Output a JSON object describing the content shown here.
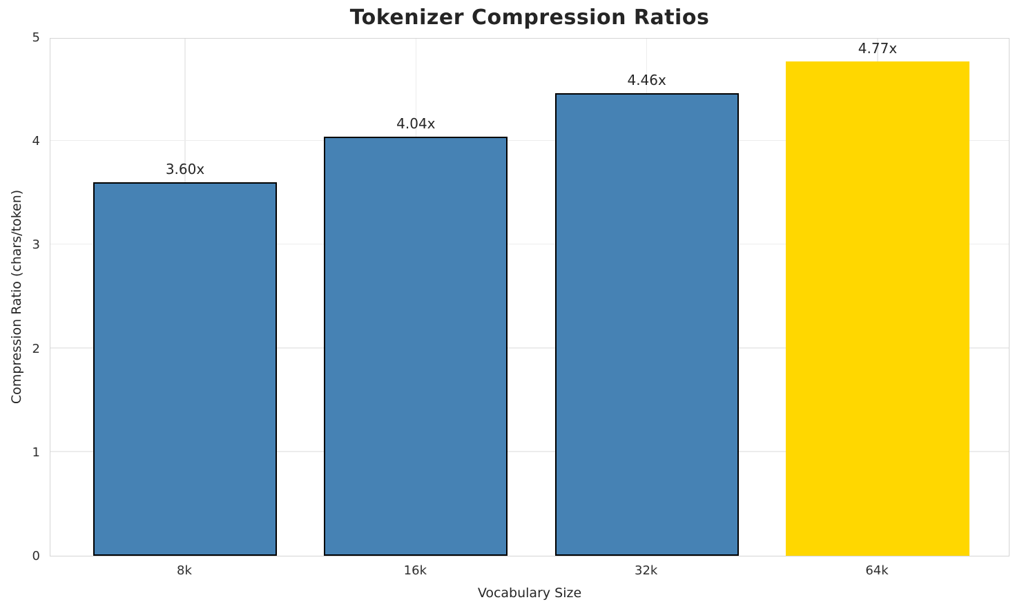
{
  "chart_data": {
    "type": "bar",
    "title": "Tokenizer Compression Ratios",
    "xlabel": "Vocabulary Size",
    "ylabel": "Compression Ratio (chars/token)",
    "categories": [
      "8k",
      "16k",
      "32k",
      "64k"
    ],
    "values": [
      3.6,
      4.04,
      4.46,
      4.77
    ],
    "bar_labels": [
      "3.60x",
      "4.04x",
      "4.46x",
      "4.77x"
    ],
    "bar_colors": [
      "#4682B4",
      "#4682B4",
      "#4682B4",
      "#FFD700"
    ],
    "bar_edge_colors": [
      "#000000",
      "#000000",
      "#000000",
      "#FFD700"
    ],
    "yticks": [
      0,
      1,
      2,
      3,
      4,
      5
    ],
    "ylim": [
      0,
      5
    ],
    "grid": "both",
    "legend": "none"
  },
  "colors": {
    "bar_default": "#4682B4",
    "bar_highlight": "#FFD700",
    "grid": "#ececec",
    "spine": "#d4d4d4",
    "text": "#262626",
    "background": "#ffffff"
  }
}
